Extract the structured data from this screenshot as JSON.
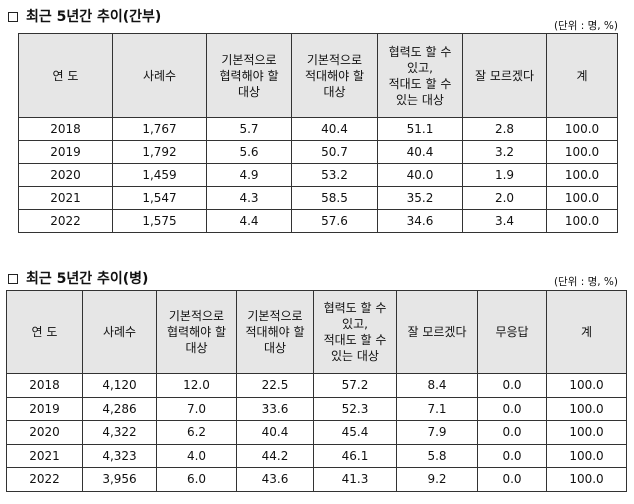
{
  "sections": [
    {
      "title": "최근 5년간 추이(간부)",
      "unit": "(단위 : 명, %)",
      "headers": [
        [
          "연 도"
        ],
        [
          "사례수"
        ],
        [
          "기본적으로",
          "협력해야 할",
          "대상"
        ],
        [
          "기본적으로",
          "적대해야 할",
          "대상"
        ],
        [
          "협력도 할 수",
          "있고,",
          "적대도 할 수",
          "있는 대상"
        ],
        [
          "잘 모르겠다"
        ],
        [
          "계"
        ]
      ],
      "rows": [
        [
          "2018",
          "1,767",
          "5.7",
          "40.4",
          "51.1",
          "2.8",
          "100.0"
        ],
        [
          "2019",
          "1,792",
          "5.6",
          "50.7",
          "40.4",
          "3.2",
          "100.0"
        ],
        [
          "2020",
          "1,459",
          "4.9",
          "53.2",
          "40.0",
          "1.9",
          "100.0"
        ],
        [
          "2021",
          "1,547",
          "4.3",
          "58.5",
          "35.2",
          "2.0",
          "100.0"
        ],
        [
          "2022",
          "1,575",
          "4.4",
          "57.6",
          "34.6",
          "3.4",
          "100.0"
        ]
      ]
    },
    {
      "title": "최근 5년간 추이(병)",
      "unit": "(단위 : 명, %)",
      "headers": [
        [
          "연 도"
        ],
        [
          "사례수"
        ],
        [
          "기본적으로",
          "협력해야 할",
          "대상"
        ],
        [
          "기본적으로",
          "적대해야 할",
          "대상"
        ],
        [
          "협력도 할 수",
          "있고,",
          "적대도 할 수",
          "있는 대상"
        ],
        [
          "잘 모르겠다"
        ],
        [
          "무응답"
        ],
        [
          "계"
        ]
      ],
      "rows": [
        [
          "2018",
          "4,120",
          "12.0",
          "22.5",
          "57.2",
          "8.4",
          "0.0",
          "100.0"
        ],
        [
          "2019",
          "4,286",
          "7.0",
          "33.6",
          "52.3",
          "7.1",
          "0.0",
          "100.0"
        ],
        [
          "2020",
          "4,322",
          "6.2",
          "40.4",
          "45.4",
          "7.9",
          "0.0",
          "100.0"
        ],
        [
          "2021",
          "4,323",
          "4.0",
          "44.2",
          "46.1",
          "5.8",
          "0.0",
          "100.0"
        ],
        [
          "2022",
          "3,956",
          "6.0",
          "43.6",
          "41.3",
          "9.2",
          "0.0",
          "100.0"
        ]
      ]
    }
  ]
}
